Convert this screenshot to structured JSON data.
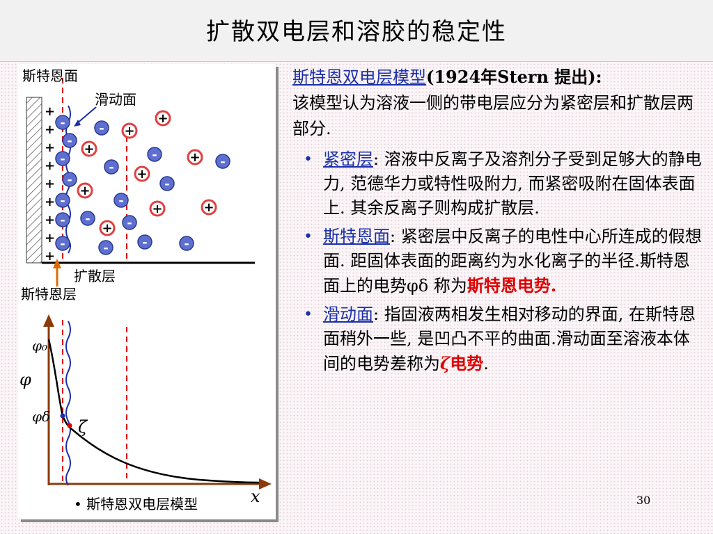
{
  "slide": {
    "title": "扩散双电层和溶胶的稳定性",
    "page_number": "30"
  },
  "figure": {
    "labels": {
      "stern_plane": "斯特恩面",
      "slip_plane": "滑动面",
      "diffuse_layer": "扩散层",
      "stern_layer": "斯特恩层",
      "phi": "φ",
      "phi0": "φ₀",
      "phi_delta": "φδ",
      "zeta": "ζ",
      "x_axis": "x",
      "caption": "• 斯特恩双电层模型"
    },
    "ion_signs": {
      "positive": "+",
      "negative": "-"
    }
  },
  "text": {
    "intro_link": "斯特恩双电层模型",
    "intro_rest": "(1924年Stern 提出):",
    "intro_body": "该模型认为溶液一侧的带电层应分为紧密层和扩散层两部分.",
    "bullets": [
      {
        "term": "紧密层",
        "body": ": 溶液中反离子及溶剂分子受到足够大的静电力, 范德华力或特性吸附力, 而紧密吸附在固体表面上. 其余反离子则构成扩散层."
      },
      {
        "term": "斯特恩面",
        "body": ": 紧密层中反离子的电性中心所连成的假想面. 距固体表面的距离约为水化离子的半径.斯特恩面上的电势φδ 称为",
        "highlight": "斯特恩电势",
        "end": "."
      },
      {
        "term": "滑动面",
        "body": ": 指固液两相发生相对移动的界面, 在斯特恩面稍外一些, 是凹凸不平的曲面.滑动面至溶液本体间的电势差称为",
        "highlight_symbol": "ζ",
        "highlight": "电势",
        "end": "."
      }
    ]
  },
  "colors": {
    "link": "#1a2fa8",
    "highlight": "#e00000",
    "axis": "#8b3a0a",
    "ion_fill": "#5f6fd0"
  }
}
